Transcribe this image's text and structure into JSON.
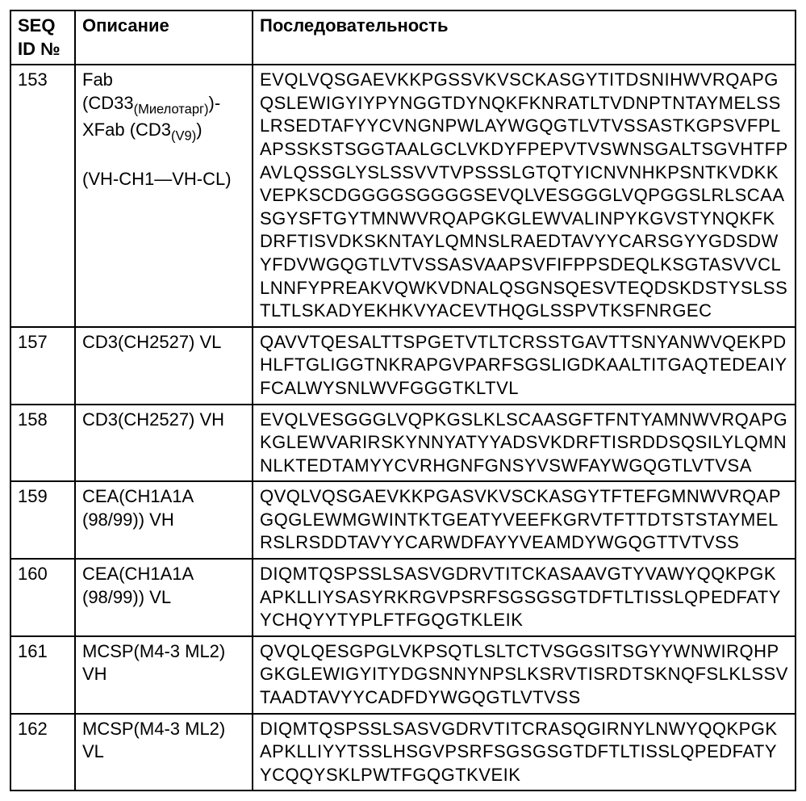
{
  "table": {
    "headers": {
      "seqid": "SEQ ID №",
      "description": "Описание",
      "sequence": "Последовательность"
    },
    "column_widths": {
      "seqid": 80,
      "description": 220
    },
    "border_color": "#000000",
    "border_width": 2,
    "font_size": 22,
    "background_color": "#ffffff",
    "text_color": "#000000",
    "rows": [
      {
        "seqid": "153",
        "description_parts": {
          "prefix1": "Fab (CD33",
          "sub1": "(Миелотарг)",
          "mid1": ")-XFab (CD3",
          "sub2": "(V9)",
          "suffix1": ")",
          "line2": " (VH-CH1—VH-CL)"
        },
        "sequence": "EVQLVQSGAEVKKPGSSVKVSCKASGYTITDSNIHWVRQAPGQSLEWIGYIYPYNGGTDYNQKFKNRATLTVDNPTNTAYMELSSLRSEDTAFYYCVNGNPWLAYWGQGTLVTVSSASTKGPSVFPLAPSSKSTSGGTAALGCLVKDYFPEPVTVSWNSGALTSGVHTFPAVLQSSGLYSLSSVVTVPSSSLGTQTYICNVNHKPSNTKVDKKVEPKSCDGGGGSGGGGSEVQLVESGGGLVQPGGSLRLSCAASGYSFTGYTMNWVRQAPGKGLEWVALINPYKGVSTYNQKFKDRFTISVDKSKNTAYLQMNSLRAEDTAVYYCARSGYYGDSDWYFDVWGQGTLVTVSSASVAAPSVFIFPPSDEQLKSGTASVVCLLNNFYPREAKVQWKVDNALQSGNSQESVTEQDSKDSTYSLSSTLTLSKADYEKHKVYACEVTHQGLSSPVTKSFNRGEC"
      },
      {
        "seqid": "157",
        "description": "CD3(CH2527) VL",
        "sequence": "QAVVTQESALTTSPGETVTLTCRSSTGAVTTSNYANWVQEKPDHLFTGLIGGTNKRAPGVPARFSGSLIGDKAALTITGAQTEDEAIYFCALWYSNLWVFGGGTKLTVL"
      },
      {
        "seqid": "158",
        "description": "CD3(CH2527) VH",
        "sequence": "EVQLVESGGGLVQPKGSLKLSCAASGFTFNTYAMNWVRQAPGKGLEWVARIRSKYNNYATYYADSVKDRFTISRDDSQSILYLQMNNLKTEDTAMYYCVRHGNFGNSYVSWFAYWGQGTLVTVSA"
      },
      {
        "seqid": "159",
        "description": "CEA(CH1A1A (98/99)) VH",
        "sequence": "QVQLVQSGAEVKKPGASVKVSCKASGYTFTEFGMNWVRQAPGQGLEWMGWINTKTGEATYVEEFKGRVTFTTDTSTSTAYMELRSLRSDDTAVYYCARWDFAYYVEAMDYWGQGTTVTVSS"
      },
      {
        "seqid": "160",
        "description": "CEA(CH1A1A (98/99)) VL",
        "sequence": "DIQMTQSPSSLSASVGDRVTITCKASAAVGTYVAWYQQKPGKAPKLLIYSASYRKRGVPSRFSGSGSGTDFTLTISSLQPEDFATYYCHQYYTYPLFTFGQGTKLEIK"
      },
      {
        "seqid": "161",
        "description": "MCSP(M4-3 ML2) VH",
        "sequence": "QVQLQESGPGLVKPSQTLSLTCTVSGGSITSGYYWNWIRQHPGKGLEWIGYITYDGSNNYNPSLKSRVTISRDTSKNQFSLKLSSVTAADTAVYYCADFDYWGQGTLVTVSS"
      },
      {
        "seqid": "162",
        "description": "MCSP(M4-3 ML2) VL",
        "sequence": "DIQMTQSPSSLSASVGDRVTITCRASQGIRNYLNWYQQKPGKAPKLLIYYTSSLHSGVPSRFSGSGSGTDFTLTISSLQPEDFATYYCQQYSKLPWTFGQGTKVEIK"
      }
    ]
  }
}
